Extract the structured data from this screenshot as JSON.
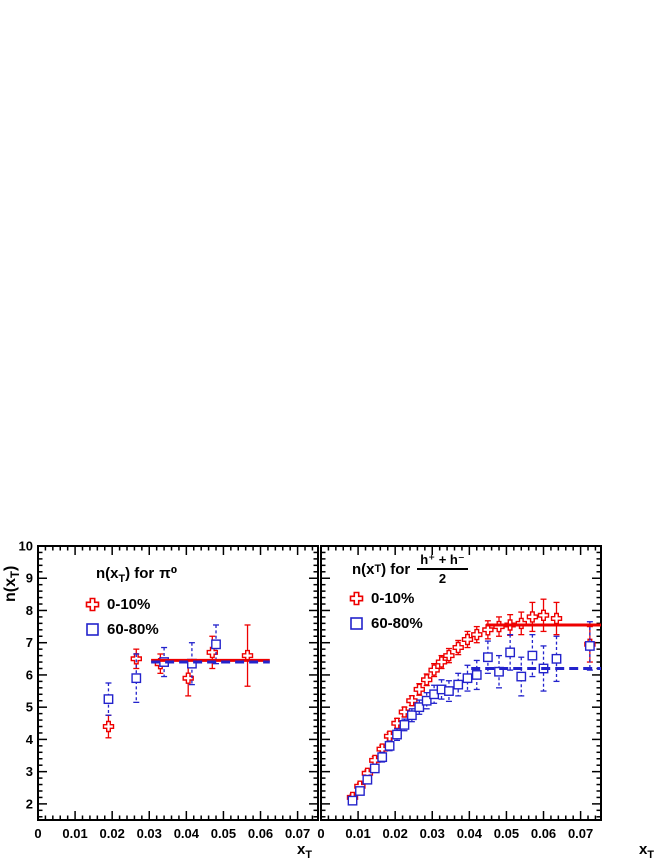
{
  "chart_data": {
    "type": "scatter",
    "title": "",
    "y_axis": {
      "title_pre": "n(x",
      "title_sub": "T",
      "title_post": ")",
      "range": [
        1.5,
        10
      ],
      "tick_values": [
        2,
        3,
        4,
        5,
        6,
        7,
        8,
        9,
        10
      ],
      "tick_labels": [
        "2",
        "3",
        "4",
        "5",
        "6",
        "7",
        "8",
        "9",
        "10"
      ],
      "minor_step": 0.2
    },
    "x_axis": {
      "title_pre": "x",
      "title_sub": "T",
      "range": [
        0,
        0.0755
      ],
      "tick_values": [
        0,
        0.01,
        0.02,
        0.03,
        0.04,
        0.05,
        0.06,
        0.07
      ],
      "tick_labels": [
        "0",
        "0.01",
        "0.02",
        "0.03",
        "0.04",
        "0.05",
        "0.06",
        "0.07"
      ],
      "minor_step": 0.002
    },
    "colors": {
      "cent_0_10": "#ee0000",
      "cent_60_80": "#2323cc",
      "axis": "#000000"
    },
    "panels": [
      {
        "id": "pi0",
        "legend": {
          "title_pre": "n(x",
          "title_sub": "T",
          "title_post": ") for",
          "symbol": "π⁰"
        },
        "series": [
          {
            "name": "0-10%",
            "color": "cent_0_10",
            "marker": "open-cross",
            "error_style": "solid",
            "points": [
              [
                0.019,
                4.4,
                0.35
              ],
              [
                0.0265,
                6.5,
                0.3
              ],
              [
                0.033,
                6.35,
                0.3
              ],
              [
                0.0405,
                5.9,
                0.55
              ],
              [
                0.047,
                6.7,
                0.5
              ],
              [
                0.0565,
                6.6,
                0.95
              ]
            ],
            "fit_line": {
              "y": 6.45,
              "x_range": [
                0.0305,
                0.0625
              ],
              "style": "solid"
            }
          },
          {
            "name": "60-80%",
            "color": "cent_60_80",
            "marker": "open-square",
            "error_style": "dashed",
            "points": [
              [
                0.019,
                5.25,
                0.5
              ],
              [
                0.0265,
                5.9,
                0.75
              ],
              [
                0.034,
                6.4,
                0.45
              ],
              [
                0.0415,
                6.35,
                0.65
              ],
              [
                0.048,
                6.95,
                0.6
              ]
            ],
            "fit_line": {
              "y": 6.4,
              "x_range": [
                0.0305,
                0.0625
              ],
              "style": "dashed"
            }
          }
        ]
      },
      {
        "id": "charged-hadrons",
        "legend": {
          "title_pre": "n(x",
          "title_sub": "T",
          "title_post": ") for",
          "frac_num": "h⁺ + h⁻",
          "frac_den": "2"
        },
        "series": [
          {
            "name": "0-10%",
            "color": "cent_0_10",
            "marker": "open-cross",
            "error_style": "solid",
            "points": [
              [
                0.0085,
                2.2,
                0.1
              ],
              [
                0.0105,
                2.55,
                0.1
              ],
              [
                0.0125,
                2.95,
                0.1
              ],
              [
                0.0145,
                3.35,
                0.12
              ],
              [
                0.0165,
                3.7,
                0.12
              ],
              [
                0.0185,
                4.1,
                0.12
              ],
              [
                0.0205,
                4.5,
                0.15
              ],
              [
                0.0225,
                4.85,
                0.15
              ],
              [
                0.0245,
                5.2,
                0.15
              ],
              [
                0.0265,
                5.55,
                0.18
              ],
              [
                0.0285,
                5.85,
                0.18
              ],
              [
                0.0305,
                6.15,
                0.2
              ],
              [
                0.0325,
                6.4,
                0.2
              ],
              [
                0.0345,
                6.6,
                0.22
              ],
              [
                0.037,
                6.85,
                0.22
              ],
              [
                0.0395,
                7.1,
                0.25
              ],
              [
                0.042,
                7.25,
                0.25
              ],
              [
                0.045,
                7.4,
                0.28
              ],
              [
                0.048,
                7.5,
                0.3
              ],
              [
                0.051,
                7.55,
                0.32
              ],
              [
                0.054,
                7.6,
                0.35
              ],
              [
                0.057,
                7.8,
                0.45
              ],
              [
                0.06,
                7.85,
                0.5
              ],
              [
                0.0635,
                7.75,
                0.5
              ],
              [
                0.0725,
                6.95,
                0.55
              ]
            ],
            "fit_line": {
              "y": 7.55,
              "x_range": [
                0.0445,
                0.0755
              ],
              "style": "solid"
            }
          },
          {
            "name": "60-80%",
            "color": "cent_60_80",
            "marker": "open-square",
            "error_style": "dashed",
            "points": [
              [
                0.0085,
                2.1,
                0.1
              ],
              [
                0.0105,
                2.4,
                0.1
              ],
              [
                0.0125,
                2.75,
                0.12
              ],
              [
                0.0145,
                3.1,
                0.12
              ],
              [
                0.0165,
                3.45,
                0.15
              ],
              [
                0.0185,
                3.8,
                0.15
              ],
              [
                0.0205,
                4.15,
                0.18
              ],
              [
                0.0225,
                4.45,
                0.18
              ],
              [
                0.0245,
                4.75,
                0.2
              ],
              [
                0.0265,
                5.0,
                0.22
              ],
              [
                0.0285,
                5.2,
                0.25
              ],
              [
                0.0305,
                5.4,
                0.28
              ],
              [
                0.0325,
                5.55,
                0.3
              ],
              [
                0.0345,
                5.5,
                0.32
              ],
              [
                0.037,
                5.7,
                0.35
              ],
              [
                0.0395,
                5.9,
                0.4
              ],
              [
                0.042,
                6.0,
                0.45
              ],
              [
                0.045,
                6.55,
                0.5
              ],
              [
                0.048,
                6.1,
                0.5
              ],
              [
                0.051,
                6.7,
                0.55
              ],
              [
                0.054,
                5.95,
                0.6
              ],
              [
                0.057,
                6.6,
                0.65
              ],
              [
                0.06,
                6.2,
                0.7
              ],
              [
                0.0635,
                6.5,
                0.7
              ],
              [
                0.0725,
                6.9,
                0.75
              ]
            ],
            "fit_line": {
              "y": 6.2,
              "x_range": [
                0.0405,
                0.0755
              ],
              "style": "dashed"
            }
          }
        ]
      }
    ]
  }
}
